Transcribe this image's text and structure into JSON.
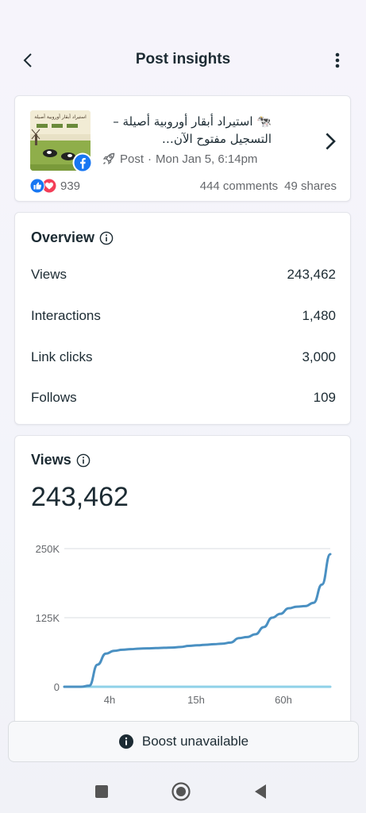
{
  "header": {
    "title": "Post insights",
    "back_icon": "chevron-left-icon",
    "more_icon": "more-vertical-icon"
  },
  "post": {
    "title_line1": "🐄 استيراد أبقار أوروبية أصيلة –",
    "title_line2": "التسجيل مفتوح الآن…",
    "type": "Post",
    "separator": "·",
    "date": "Mon Jan 5, 6:14pm",
    "reactions_count": "939",
    "comments": "444 comments",
    "shares": "49 shares",
    "thumbnail_text": "استيراد أبقار أوروبية أصيلة",
    "platform_icon": "facebook-icon"
  },
  "overview": {
    "title": "Overview",
    "metrics": [
      {
        "label": "Views",
        "value": "243,462"
      },
      {
        "label": "Interactions",
        "value": "1,480"
      },
      {
        "label": "Link clicks",
        "value": "3,000"
      },
      {
        "label": "Follows",
        "value": "109"
      }
    ]
  },
  "views": {
    "title": "Views",
    "total": "243,462"
  },
  "chart_data": {
    "type": "line",
    "yticks": [
      "250K",
      "125K",
      "0"
    ],
    "ylim": [
      0,
      250000
    ],
    "xticks": [
      "4h",
      "15h",
      "60h"
    ],
    "series": [
      {
        "values": [
          0,
          0,
          0,
          2000,
          40000,
          60000,
          65000,
          67000,
          68000,
          69000,
          69500,
          70000,
          70500,
          71000,
          72000,
          74000,
          75000,
          76000,
          77000,
          78000,
          80000,
          88000,
          90000,
          95000,
          108000,
          125000,
          132000,
          142000,
          145000,
          146000,
          152000,
          185000,
          240000
        ],
        "color": "#4a90c2"
      },
      {
        "values": [
          0,
          0,
          0,
          0,
          0,
          0,
          0,
          0,
          0,
          0,
          0,
          0,
          0,
          0,
          0,
          0,
          0,
          0,
          0,
          0,
          0,
          0,
          0,
          0,
          0,
          0,
          0,
          0,
          0,
          0,
          0,
          0,
          0
        ],
        "color": "#8fd1e8"
      }
    ]
  },
  "boost": {
    "label": "Boost unavailable",
    "icon": "info-filled-icon"
  },
  "system_nav": {
    "recents_icon": "square-icon",
    "home_icon": "home-circle-icon",
    "back_icon": "triangle-back-icon"
  }
}
